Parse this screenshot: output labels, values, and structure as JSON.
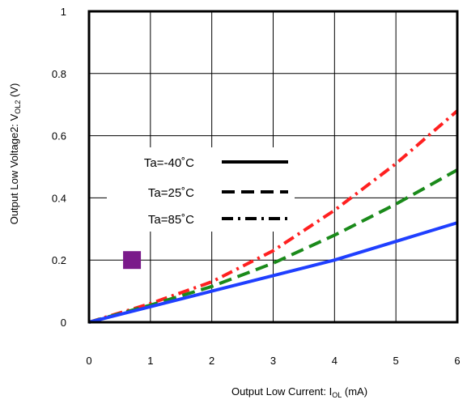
{
  "chart_data": {
    "type": "line",
    "title": "",
    "xlabel": {
      "main": "Output Low Current: I",
      "sub": "OL",
      "unit": " (mA)"
    },
    "ylabel": {
      "main": "Output Low Voltage2: V",
      "sub": "OL2",
      "unit": " (V)"
    },
    "xlim": [
      0,
      6
    ],
    "ylim": [
      0,
      1
    ],
    "x_ticks": [
      "0",
      "1",
      "2",
      "3",
      "4",
      "5",
      "6"
    ],
    "y_ticks": [
      "0",
      "0.2",
      "0.4",
      "0.6",
      "0.8",
      "1"
    ],
    "grid": true,
    "legend_position": "center-left",
    "series": [
      {
        "name": "Ta=-40˚C",
        "color": "#1f3fff",
        "dash": "solid",
        "x": [
          0,
          1,
          2,
          3,
          4,
          5,
          6
        ],
        "y": [
          0,
          0.05,
          0.1,
          0.15,
          0.2,
          0.26,
          0.32
        ]
      },
      {
        "name": "Ta=25˚C",
        "color": "#1a8a1a",
        "dash": "dashed",
        "x": [
          0,
          1,
          2,
          3,
          4,
          5,
          6
        ],
        "y": [
          0,
          0.055,
          0.115,
          0.19,
          0.28,
          0.38,
          0.49
        ]
      },
      {
        "name": "Ta=85˚C",
        "color": "#ff2020",
        "dash": "dash-dot",
        "x": [
          0,
          1,
          2,
          3,
          4,
          5,
          6
        ],
        "y": [
          0,
          0.06,
          0.13,
          0.23,
          0.36,
          0.51,
          0.68
        ]
      }
    ],
    "legend_line_color": "#000000",
    "marker": {
      "color": "#7a1a8a",
      "x": 0.7,
      "y": 0.2,
      "shape": "square"
    }
  }
}
